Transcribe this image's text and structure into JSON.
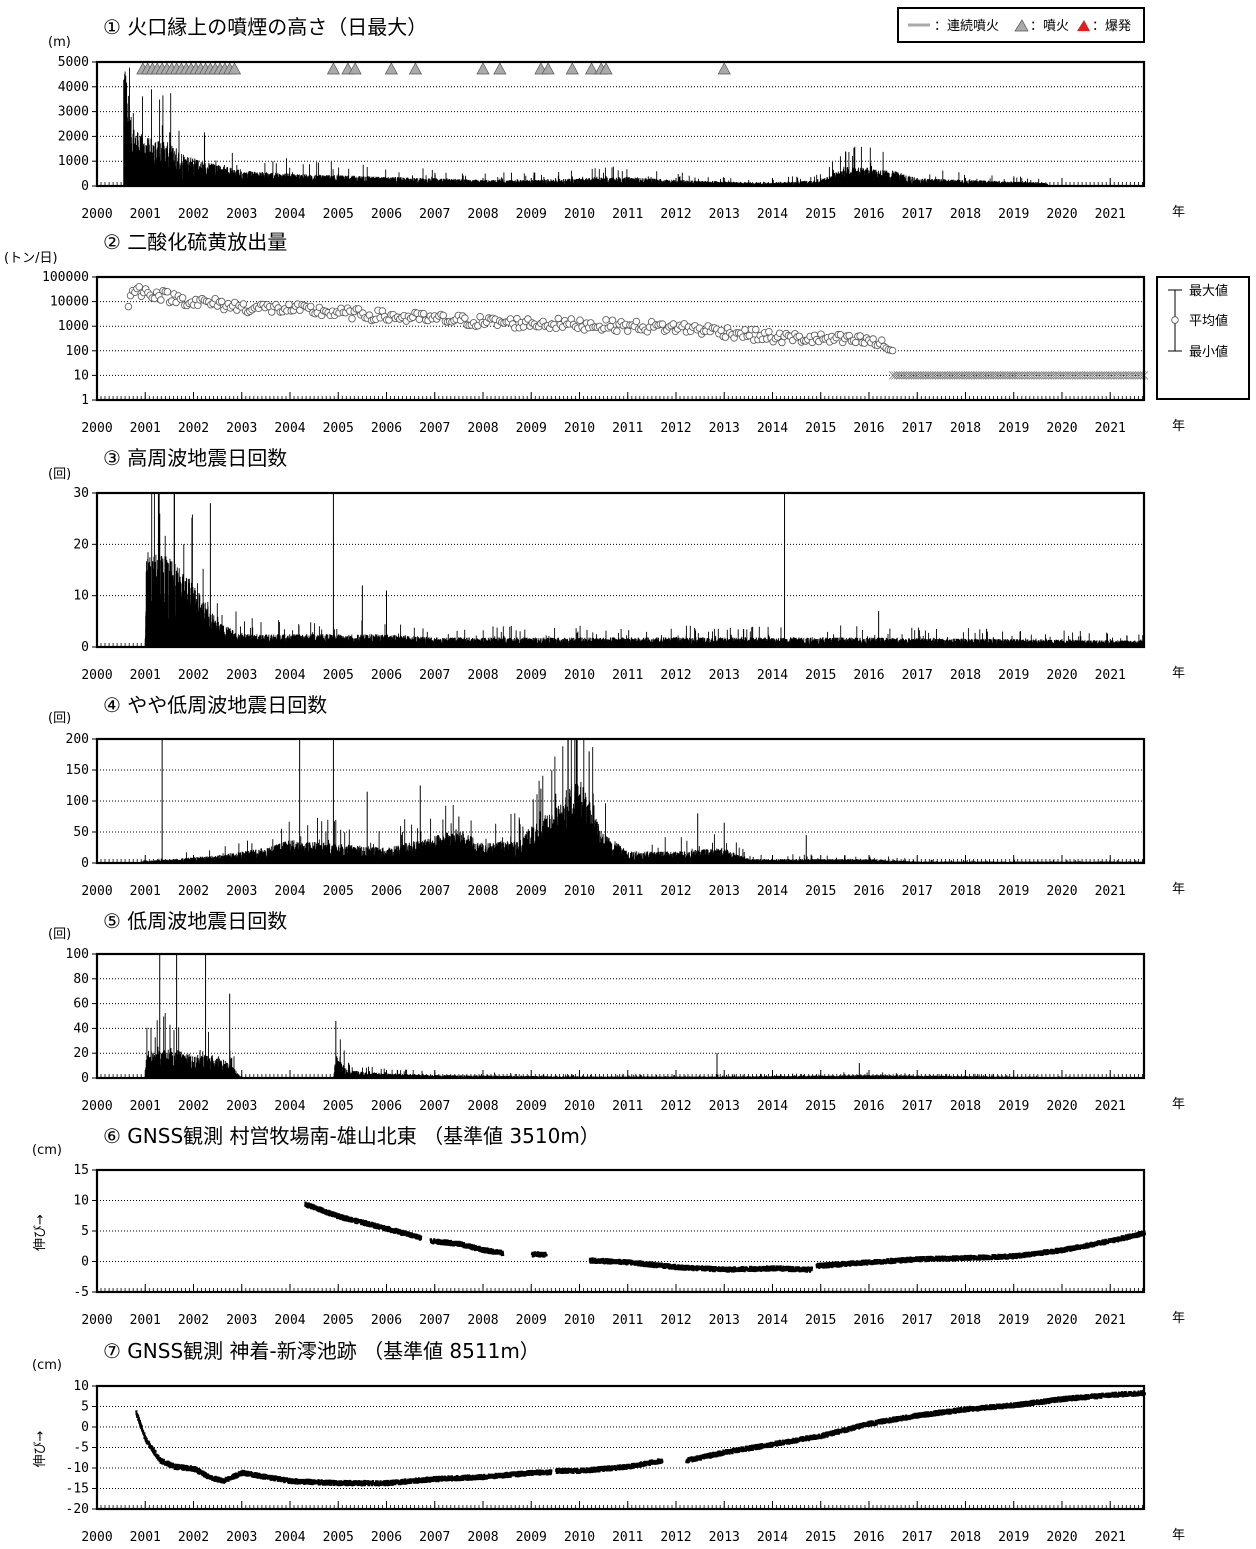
{
  "year_suffix": "年",
  "x_ticks": [
    2000,
    2001,
    2002,
    2003,
    2004,
    2005,
    2006,
    2007,
    2008,
    2009,
    2010,
    2011,
    2012,
    2013,
    2014,
    2015,
    2016,
    2017,
    2018,
    2019,
    2020,
    2021
  ],
  "legend_top": {
    "continuous_eruption": "：連続噴火",
    "eruption": "：噴火",
    "explosion": "：爆発"
  },
  "legend_so2": {
    "max": "最大値",
    "mean": "平均値",
    "min": "最小値"
  },
  "colors": {
    "eruption_mark": "#aaaaaa",
    "explosion_mark": "#e02020",
    "bars": "#000000",
    "points": "#000000"
  },
  "chart_data": [
    {
      "id": "plume",
      "type": "bar",
      "title": "① 火口縁上の噴煙の高さ（日最大）",
      "ylabel": "(m)",
      "ylim": [
        0,
        5000
      ],
      "y_ticks": [
        0,
        1000,
        2000,
        3000,
        4000,
        5000
      ],
      "xlim": [
        2000,
        2021.7
      ],
      "series_profile": [
        [
          2000.55,
          5000
        ],
        [
          2000.65,
          2500
        ],
        [
          2000.8,
          1800
        ],
        [
          2001.0,
          1600
        ],
        [
          2001.5,
          1400
        ],
        [
          2002.0,
          900
        ],
        [
          2003.0,
          500
        ],
        [
          2004.0,
          400
        ],
        [
          2005.0,
          350
        ],
        [
          2006.0,
          300
        ],
        [
          2007.0,
          250
        ],
        [
          2008.0,
          200
        ],
        [
          2009.0,
          200
        ],
        [
          2010.0,
          250
        ],
        [
          2011.0,
          300
        ],
        [
          2012.0,
          200
        ],
        [
          2013.0,
          150
        ],
        [
          2014.0,
          100
        ],
        [
          2015.0,
          200
        ],
        [
          2015.5,
          600
        ],
        [
          2016.0,
          600
        ],
        [
          2016.5,
          500
        ],
        [
          2017.0,
          250
        ],
        [
          2018.0,
          200
        ],
        [
          2019.0,
          150
        ],
        [
          2019.7,
          100
        ]
      ],
      "eruption_marks": [
        2000.95,
        2001.05,
        2001.15,
        2001.25,
        2001.35,
        2001.45,
        2001.55,
        2001.65,
        2001.75,
        2001.85,
        2001.95,
        2002.05,
        2002.15,
        2002.25,
        2002.35,
        2002.45,
        2002.55,
        2002.65,
        2002.75,
        2002.85,
        2004.9,
        2005.2,
        2005.35,
        2006.1,
        2006.6,
        2008.0,
        2008.35,
        2009.2,
        2009.35,
        2009.85,
        2010.25,
        2010.45,
        2010.55,
        2013.0
      ]
    },
    {
      "id": "so2",
      "type": "scatter",
      "title": "② 二酸化硫黄放出量",
      "ylabel": "(トン/日)",
      "yscale": "log",
      "ylim": [
        1,
        100000
      ],
      "y_ticks": [
        1,
        10,
        100,
        1000,
        10000,
        100000
      ],
      "xlim": [
        2000,
        2021.7
      ],
      "mean_profile": [
        [
          2000.65,
          10000
        ],
        [
          2000.8,
          30000
        ],
        [
          2001.0,
          25000
        ],
        [
          2001.5,
          15000
        ],
        [
          2002.0,
          10000
        ],
        [
          2003.0,
          6000
        ],
        [
          2004.0,
          5000
        ],
        [
          2005.0,
          3500
        ],
        [
          2006.0,
          2500
        ],
        [
          2007.0,
          2000
        ],
        [
          2008.0,
          1500
        ],
        [
          2009.0,
          1300
        ],
        [
          2010.0,
          1200
        ],
        [
          2011.0,
          1000
        ],
        [
          2012.0,
          900
        ],
        [
          2013.0,
          600
        ],
        [
          2014.0,
          350
        ],
        [
          2015.0,
          300
        ],
        [
          2016.0,
          250
        ],
        [
          2016.5,
          100
        ]
      ],
      "min_marker_value": 10,
      "min_marker_range": [
        2016.5,
        2021.7
      ]
    },
    {
      "id": "hf_quakes",
      "type": "bar",
      "title": "③ 高周波地震日回数",
      "ylabel": "(回)",
      "ylim": [
        0,
        30
      ],
      "y_ticks": [
        0,
        10,
        20,
        30
      ],
      "xlim": [
        2000,
        2021.7
      ],
      "series_profile": [
        [
          2001.0,
          0
        ],
        [
          2001.02,
          15
        ],
        [
          2001.5,
          14
        ],
        [
          2002.0,
          10
        ],
        [
          2002.5,
          4
        ],
        [
          2003.0,
          2
        ],
        [
          2006.0,
          2
        ],
        [
          2007.0,
          1.5
        ],
        [
          2010.0,
          1.5
        ],
        [
          2013.0,
          1.5
        ],
        [
          2016.0,
          1.5
        ],
        [
          2021.7,
          1
        ]
      ],
      "spikes": [
        [
          2001.3,
          26
        ],
        [
          2001.6,
          30
        ],
        [
          2002.35,
          28
        ],
        [
          2004.9,
          30
        ],
        [
          2014.25,
          30
        ],
        [
          2016.2,
          7
        ],
        [
          2006.0,
          11
        ],
        [
          2005.5,
          12
        ]
      ]
    },
    {
      "id": "vlf_quakes",
      "type": "bar",
      "title": "④ やや低周波地震日回数",
      "ylabel": "(回)",
      "ylim": [
        0,
        200
      ],
      "y_ticks": [
        0,
        50,
        100,
        150,
        200
      ],
      "xlim": [
        2000,
        2021.7
      ],
      "series_profile": [
        [
          2000.9,
          2
        ],
        [
          2001.5,
          5
        ],
        [
          2002.5,
          10
        ],
        [
          2003.5,
          20
        ],
        [
          2004.0,
          30
        ],
        [
          2005.0,
          25
        ],
        [
          2006.0,
          20
        ],
        [
          2007.0,
          35
        ],
        [
          2007.5,
          45
        ],
        [
          2008.0,
          25
        ],
        [
          2008.8,
          30
        ],
        [
          2009.0,
          50
        ],
        [
          2009.5,
          70
        ],
        [
          2010.0,
          110
        ],
        [
          2010.5,
          40
        ],
        [
          2011.0,
          15
        ],
        [
          2012.0,
          15
        ],
        [
          2013.0,
          20
        ],
        [
          2013.5,
          5
        ],
        [
          2015.0,
          5
        ],
        [
          2016.0,
          5
        ],
        [
          2017.0,
          2
        ],
        [
          2021.7,
          2
        ]
      ],
      "spikes": [
        [
          2001.35,
          200
        ],
        [
          2004.2,
          200
        ],
        [
          2004.9,
          200
        ],
        [
          2005.6,
          115
        ],
        [
          2006.7,
          125
        ],
        [
          2007.5,
          75
        ],
        [
          2009.2,
          120
        ],
        [
          2010.2,
          180
        ],
        [
          2012.45,
          80
        ],
        [
          2013.0,
          65
        ],
        [
          2014.7,
          45
        ]
      ]
    },
    {
      "id": "lf_quakes",
      "type": "bar",
      "title": "⑤ 低周波地震日回数",
      "ylabel": "(回)",
      "ylim": [
        0,
        100
      ],
      "y_ticks": [
        0,
        20,
        40,
        60,
        80,
        100
      ],
      "xlim": [
        2000,
        2021.7
      ],
      "series_profile": [
        [
          2001.0,
          0
        ],
        [
          2001.02,
          15
        ],
        [
          2001.5,
          20
        ],
        [
          2002.0,
          15
        ],
        [
          2002.5,
          15
        ],
        [
          2002.8,
          8
        ],
        [
          2003.0,
          0
        ],
        [
          2004.9,
          0
        ],
        [
          2004.95,
          15
        ],
        [
          2005.2,
          5
        ],
        [
          2006.0,
          3
        ],
        [
          2007.0,
          2
        ],
        [
          2010.0,
          1
        ],
        [
          2013.0,
          1
        ],
        [
          2016.0,
          2
        ],
        [
          2021.7,
          0
        ]
      ],
      "spikes": [
        [
          2001.3,
          100
        ],
        [
          2001.65,
          100
        ],
        [
          2002.25,
          100
        ],
        [
          2002.75,
          68
        ],
        [
          2004.95,
          46
        ],
        [
          2012.85,
          20
        ],
        [
          2015.8,
          12
        ]
      ]
    },
    {
      "id": "gnss1",
      "type": "scatter",
      "title": "⑥ GNSS観測 村営牧場南-雄山北東 （基準値 3510m）",
      "ylabel": "(cm)",
      "side_label": "伸び→",
      "ylim": [
        -5,
        15
      ],
      "y_ticks": [
        -5,
        0,
        5,
        10,
        15
      ],
      "xlim": [
        2000,
        2021.7
      ],
      "segments": [
        [
          [
            2004.3,
            9.5
          ],
          [
            2005.0,
            7.5
          ],
          [
            2006.0,
            5.5
          ],
          [
            2006.7,
            4.0
          ]
        ],
        [
          [
            2006.9,
            3.5
          ],
          [
            2007.5,
            3.0
          ],
          [
            2008.0,
            2.0
          ],
          [
            2008.4,
            1.5
          ]
        ],
        [
          [
            2009.0,
            1.3
          ],
          [
            2009.3,
            1.3
          ]
        ],
        [
          [
            2010.2,
            0.3
          ],
          [
            2011.0,
            0.0
          ],
          [
            2012.0,
            -0.8
          ],
          [
            2013.0,
            -1.2
          ],
          [
            2014.0,
            -1.0
          ],
          [
            2014.8,
            -1.2
          ]
        ],
        [
          [
            2014.9,
            -0.6
          ],
          [
            2016.0,
            0.0
          ],
          [
            2017.0,
            0.5
          ],
          [
            2018.0,
            0.7
          ],
          [
            2019.0,
            1.0
          ],
          [
            2020.0,
            2.0
          ],
          [
            2021.0,
            3.5
          ],
          [
            2021.7,
            4.8
          ]
        ]
      ]
    },
    {
      "id": "gnss2",
      "type": "scatter",
      "title": "⑦ GNSS観測 神着-新澪池跡 （基準値 8511m）",
      "ylabel": "(cm)",
      "side_label": "伸び→",
      "ylim": [
        -20,
        10
      ],
      "y_ticks": [
        -20,
        -15,
        -10,
        -5,
        0,
        5,
        10
      ],
      "xlim": [
        2000,
        2021.7
      ],
      "segments": [
        [
          [
            2000.8,
            3.5
          ],
          [
            2001.0,
            -3
          ],
          [
            2001.3,
            -8
          ],
          [
            2001.6,
            -9.5
          ],
          [
            2002.0,
            -10
          ],
          [
            2002.3,
            -12
          ],
          [
            2002.6,
            -13
          ],
          [
            2003.0,
            -11
          ],
          [
            2004.0,
            -13
          ],
          [
            2005.0,
            -13.5
          ],
          [
            2006.0,
            -13.5
          ],
          [
            2007.0,
            -12.5
          ],
          [
            2008.0,
            -12
          ],
          [
            2009.0,
            -11
          ],
          [
            2009.4,
            -10.8
          ]
        ],
        [
          [
            2009.5,
            -10.5
          ],
          [
            2010.0,
            -10.5
          ],
          [
            2011.0,
            -9.5
          ],
          [
            2011.7,
            -8
          ]
        ],
        [
          [
            2012.2,
            -8
          ],
          [
            2013.0,
            -6
          ],
          [
            2014.0,
            -4
          ],
          [
            2015.0,
            -2
          ],
          [
            2016.0,
            1
          ],
          [
            2017.0,
            3
          ],
          [
            2018.0,
            4.5
          ],
          [
            2019.0,
            5.5
          ],
          [
            2020.0,
            7
          ],
          [
            2021.0,
            8
          ],
          [
            2021.7,
            8.5
          ]
        ]
      ]
    }
  ]
}
